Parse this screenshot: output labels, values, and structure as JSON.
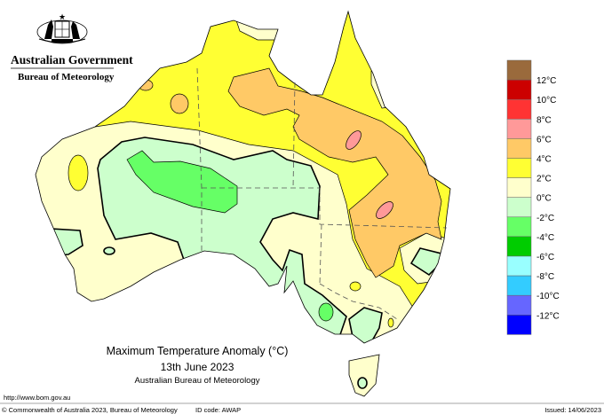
{
  "header": {
    "org_line1": "Australian Government",
    "org_line2": "Bureau of Meteorology",
    "logo": "commonwealth-coat-of-arms"
  },
  "map": {
    "title": "Maximum Temperature Anomaly (°C)",
    "date": "13th June 2023",
    "source": "Australian Bureau of Meteorology",
    "region": "Australia"
  },
  "legend": {
    "bands": [
      {
        "color": "#9a6a3c"
      },
      {
        "color": "#cc0000"
      },
      {
        "color": "#ff3333"
      },
      {
        "color": "#ff9999"
      },
      {
        "color": "#ffc966"
      },
      {
        "color": "#ffff33"
      },
      {
        "color": "#ffffcc"
      },
      {
        "color": "#ccffcc"
      },
      {
        "color": "#66ff66"
      },
      {
        "color": "#00cc00"
      },
      {
        "color": "#99ffff"
      },
      {
        "color": "#33ccff"
      },
      {
        "color": "#6666ff"
      },
      {
        "color": "#0000ff"
      }
    ],
    "labels": [
      "12°C",
      "10°C",
      "8°C",
      "6°C",
      "4°C",
      "2°C",
      "0°C",
      "-2°C",
      "-4°C",
      "-6°C",
      "-8°C",
      "-10°C",
      "-12°C"
    ]
  },
  "footer": {
    "url": "http://www.bom.gov.au",
    "copyright": "© Commonwealth of Australia 2023, Bureau of Meteorology",
    "id_code": "ID code: AWAP",
    "issued": "Issued: 14/06/2023"
  }
}
